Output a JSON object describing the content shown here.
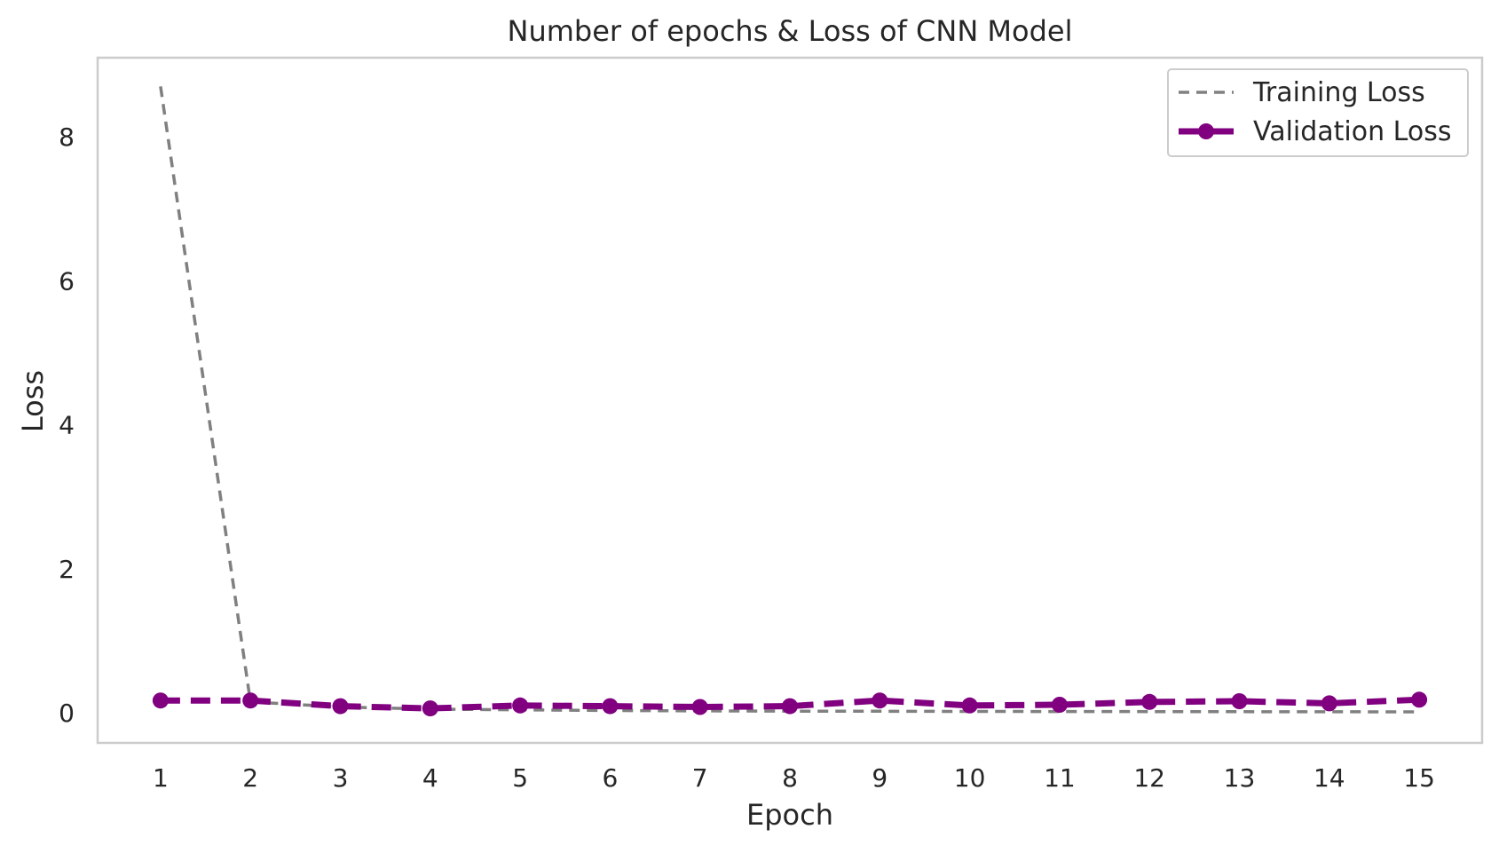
{
  "chart_data": {
    "type": "line",
    "title": "Number of epochs & Loss of CNN Model",
    "xlabel": "Epoch",
    "ylabel": "Loss",
    "x": [
      1,
      2,
      3,
      4,
      5,
      6,
      7,
      8,
      9,
      10,
      11,
      12,
      13,
      14,
      15
    ],
    "xticks": [
      "1",
      "2",
      "3",
      "4",
      "5",
      "6",
      "7",
      "8",
      "9",
      "10",
      "11",
      "12",
      "13",
      "14",
      "15"
    ],
    "yticks": [
      0,
      2,
      4,
      6,
      8
    ],
    "ytick_labels": [
      "0",
      "2",
      "4",
      "6",
      "8"
    ],
    "xlim": [
      0.3,
      15.7
    ],
    "ylim": [
      -0.42,
      9.1
    ],
    "grid": false,
    "legend_position": "upper right",
    "series": [
      {
        "name": "Training Loss",
        "color": "#808080",
        "style": "dashed",
        "marker": "none",
        "values": [
          8.7,
          0.15,
          0.08,
          0.05,
          0.04,
          0.03,
          0.025,
          0.022,
          0.02,
          0.018,
          0.016,
          0.015,
          0.014,
          0.013,
          0.012
        ]
      },
      {
        "name": "Validation Loss",
        "color": "#800080",
        "style": "dashed",
        "marker": "circle",
        "values": [
          0.17,
          0.17,
          0.09,
          0.06,
          0.1,
          0.09,
          0.08,
          0.09,
          0.17,
          0.1,
          0.11,
          0.15,
          0.16,
          0.13,
          0.18
        ]
      }
    ]
  }
}
